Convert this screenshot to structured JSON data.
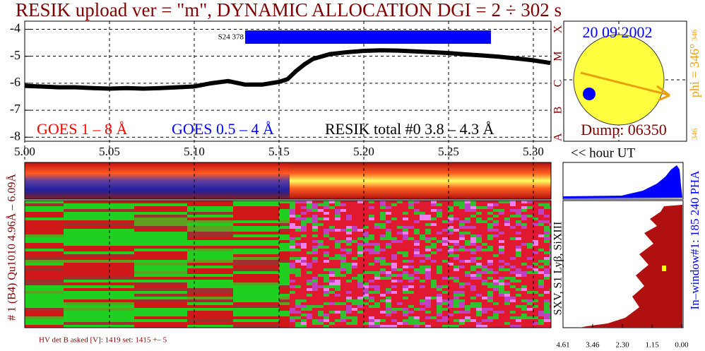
{
  "chart_data": {
    "type": "line",
    "title": "RESIK upload ver = \"m\", DYNAMIC ALLOCATION  DGI =   2 ÷ 302 s",
    "x": [
      5.0,
      5.01,
      5.02,
      5.03,
      5.04,
      5.05,
      5.06,
      5.07,
      5.08,
      5.09,
      5.1,
      5.11,
      5.12,
      5.13,
      5.14,
      5.15,
      5.155,
      5.16,
      5.165,
      5.17,
      5.18,
      5.19,
      5.2,
      5.21,
      5.22,
      5.23,
      5.24,
      5.25,
      5.26,
      5.27,
      5.28,
      5.29,
      5.3,
      5.31
    ],
    "series": [
      {
        "name": "RESIK total #0  3.8 – 4.3 Å",
        "color": "#000000",
        "values": [
          -6.1,
          -6.12,
          -6.15,
          -6.15,
          -6.18,
          -6.2,
          -6.18,
          -6.2,
          -6.18,
          -6.15,
          -6.12,
          -6.0,
          -5.92,
          -6.05,
          -6.05,
          -5.95,
          -5.85,
          -5.55,
          -5.3,
          -5.1,
          -4.92,
          -4.85,
          -4.8,
          -4.78,
          -4.79,
          -4.82,
          -4.85,
          -4.88,
          -4.93,
          -4.97,
          -5.02,
          -5.08,
          -5.15,
          -5.25
        ]
      }
    ],
    "xlim": [
      5.0,
      5.3104
    ],
    "xticks": [
      {
        "value": 5,
        "label": "5.00"
      },
      5.05,
      {
        "value": 5.1,
        "label": "5.10"
      },
      5.15,
      {
        "value": 5.2,
        "label": "5.20"
      },
      5.25,
      {
        "value": 5.3,
        "label": "5.30"
      }
    ],
    "ylim": [
      -8.15,
      -3.7
    ],
    "yticks": [
      -4,
      -5,
      -6,
      -7,
      -8
    ],
    "grid": true,
    "class_labels": [
      "X",
      "M",
      "C",
      "B",
      "A"
    ],
    "goes_labels": [
      {
        "text": "GOES 1 – 8 Å",
        "color": "#ff0000"
      },
      {
        "text": "GOES 0.5 – 4 Å",
        "color": "#0000ff"
      }
    ],
    "interval": {
      "label": "S24 378",
      "start": 5.13,
      "end": 5.275,
      "color": "#0000ff"
    },
    "x_unit_label": "<< hour UT"
  },
  "sun": {
    "date": "20 09 2002",
    "phi_label": "phi = 346°",
    "phi_small": "346",
    "dump": "Dump: 06350"
  },
  "spectrogram": {
    "ylabel": "# 1 (B4) Qu1010 4.96Å – 6.09Å",
    "right_label": "SXV, S1 Lyβ, SiXIII",
    "pha_label": "In–window#1: 185 240 PHA",
    "pha_ticks": [
      4.61,
      3.46,
      {
        "value": 2.3,
        "label": "2.30"
      },
      1.15,
      {
        "value": 0,
        "label": "0.00"
      }
    ],
    "hv_text": "HV det B asked [V]:  1419  set:  1415  +–    5"
  }
}
